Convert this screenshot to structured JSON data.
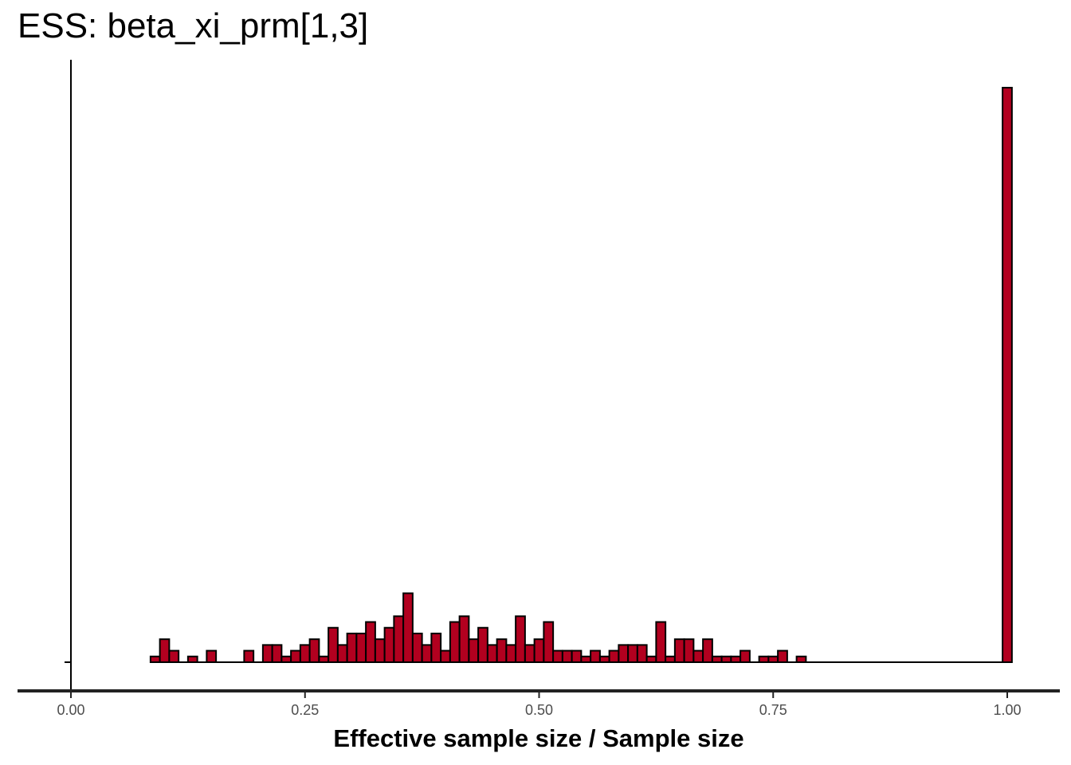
{
  "chart_data": {
    "type": "bar",
    "title": "ESS: beta_xi_prm[1,3]",
    "xlabel": "Effective sample size / Sample size",
    "ylabel": "",
    "xlim": [
      -0.0025,
      1.0025
    ],
    "ylim": [
      0,
      25
    ],
    "x_ticks": [
      {
        "value": 0.0,
        "label": "0.00"
      },
      {
        "value": 0.25,
        "label": "0.25"
      },
      {
        "value": 0.5,
        "label": "0.50"
      },
      {
        "value": 0.75,
        "label": "0.75"
      },
      {
        "value": 1.0,
        "label": "1.00"
      }
    ],
    "bin_width": 0.01,
    "bins_left": [
      0.085,
      0.095,
      0.105,
      0.125,
      0.145,
      0.185,
      0.205,
      0.215,
      0.225,
      0.235,
      0.245,
      0.255,
      0.265,
      0.275,
      0.285,
      0.295,
      0.305,
      0.315,
      0.325,
      0.335,
      0.345,
      0.355,
      0.365,
      0.375,
      0.385,
      0.395,
      0.405,
      0.415,
      0.425,
      0.435,
      0.445,
      0.455,
      0.465,
      0.475,
      0.485,
      0.495,
      0.505,
      0.515,
      0.525,
      0.535,
      0.545,
      0.555,
      0.565,
      0.575,
      0.585,
      0.595,
      0.605,
      0.615,
      0.625,
      0.635,
      0.645,
      0.655,
      0.665,
      0.675,
      0.685,
      0.695,
      0.705,
      0.715,
      0.735,
      0.745,
      0.755,
      0.775,
      0.795,
      0.995
    ],
    "counts": [
      0.25,
      1,
      0.5,
      0.25,
      0.5,
      0.5,
      0.75,
      0.75,
      0.25,
      0.5,
      0.75,
      1,
      0.25,
      1.5,
      0.75,
      1.25,
      1.25,
      1.75,
      1,
      1.5,
      2,
      3,
      1.25,
      0.75,
      1.25,
      0.5,
      1.75,
      2,
      1,
      1.5,
      0.75,
      1,
      0.75,
      2,
      0.75,
      1,
      1.75,
      0.5,
      0.5,
      0.5,
      0.25,
      0.5,
      0.25,
      0.5,
      0.75,
      0.75,
      0.75,
      0.25,
      1.75,
      0.25,
      1,
      1,
      0.5,
      1,
      0.25,
      0.25,
      0.25,
      0.5,
      0.25,
      0.25,
      0.5,
      0.25,
      0,
      25
    ],
    "grid": false,
    "legend": "none",
    "colors": {
      "fill": "#b2001f",
      "outline": "#000000",
      "axis_line": "#222222",
      "tick_label": "#4d4d4d"
    }
  }
}
